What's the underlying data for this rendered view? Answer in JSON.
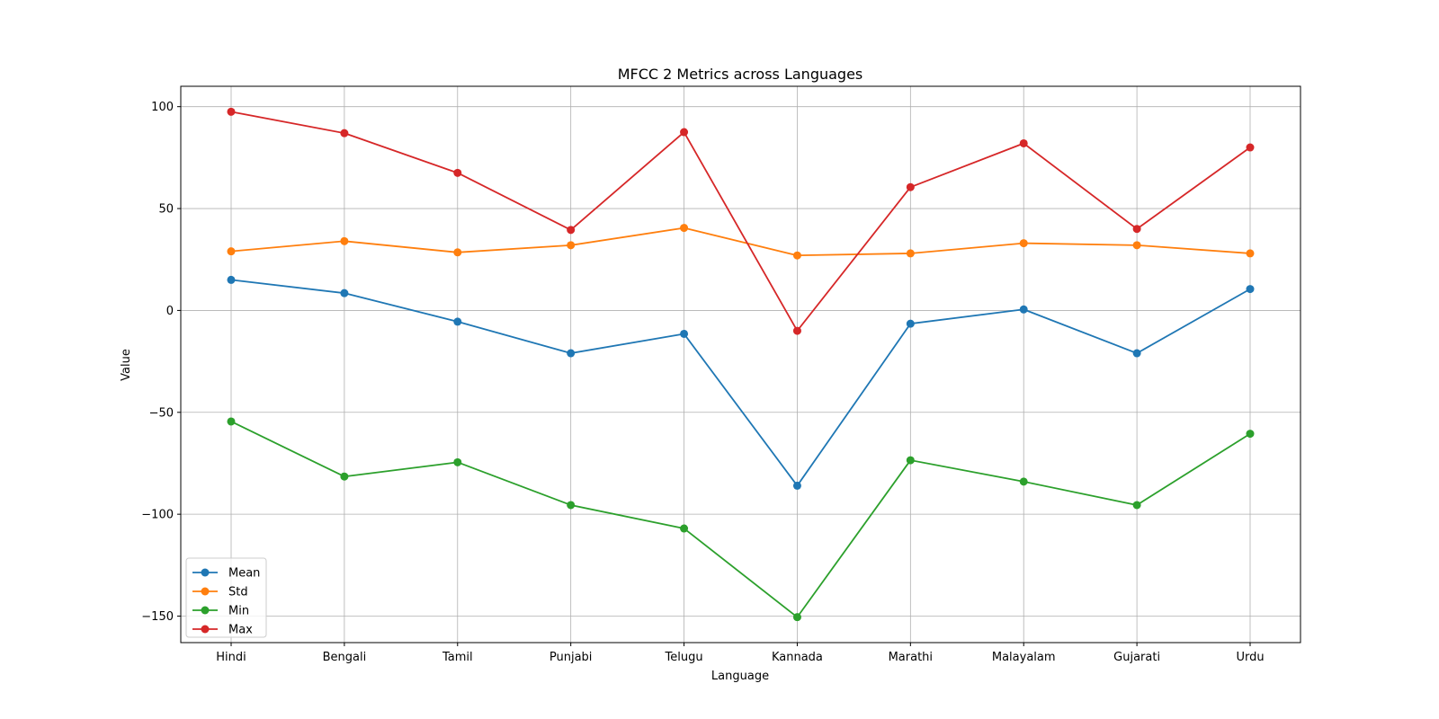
{
  "chart_data": {
    "type": "line",
    "title": "MFCC 2 Metrics across Languages",
    "xlabel": "Language",
    "ylabel": "Value",
    "categories": [
      "Hindi",
      "Bengali",
      "Tamil",
      "Punjabi",
      "Telugu",
      "Kannada",
      "Marathi",
      "Malayalam",
      "Gujarati",
      "Urdu"
    ],
    "ylim": [
      -163,
      110
    ],
    "yticks": [
      -150,
      -100,
      -50,
      0,
      50,
      100
    ],
    "ytick_labels": [
      "−150",
      "−100",
      "−50",
      "0",
      "50",
      "100"
    ],
    "grid": true,
    "legend_position": "lower-left",
    "series": [
      {
        "name": "Mean",
        "color": "#1f77b4",
        "values": [
          15,
          8.5,
          -5.5,
          -21,
          -11.5,
          -86,
          -6.5,
          0.5,
          -21,
          10.5
        ]
      },
      {
        "name": "Std",
        "color": "#ff7f0e",
        "values": [
          29,
          34,
          28.5,
          32,
          40.5,
          27,
          28,
          33,
          32,
          28
        ]
      },
      {
        "name": "Min",
        "color": "#2ca02c",
        "values": [
          -54.5,
          -81.5,
          -74.5,
          -95.5,
          -107,
          -150.5,
          -73.5,
          -84,
          -95.5,
          -60.5
        ]
      },
      {
        "name": "Max",
        "color": "#d62728",
        "values": [
          97.5,
          87,
          67.5,
          39.5,
          87.5,
          -10,
          60.5,
          82,
          40,
          80
        ]
      }
    ]
  }
}
